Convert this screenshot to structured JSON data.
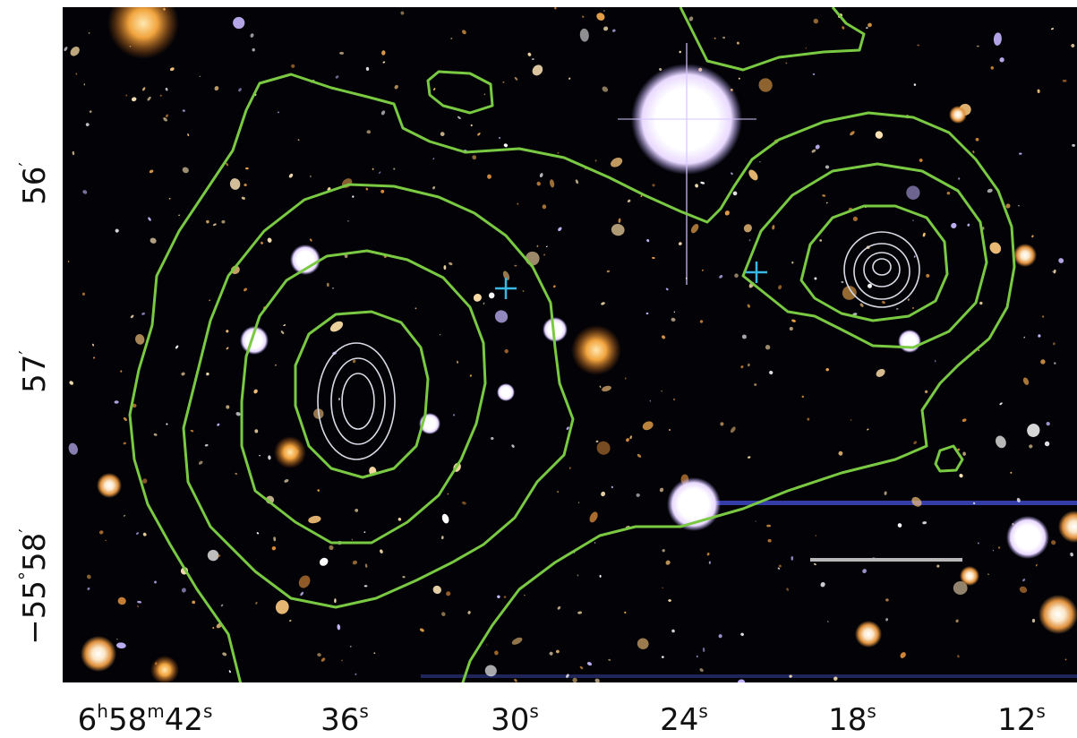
{
  "axes": {
    "x_ticks": [
      {
        "h": "6",
        "m": "58",
        "s": "42"
      },
      {
        "s": "36"
      },
      {
        "s": "30"
      },
      {
        "s": "24"
      },
      {
        "s": "18"
      },
      {
        "s": "12"
      }
    ],
    "y_ticks": [
      {
        "deg": "",
        "min": "56"
      },
      {
        "deg": "",
        "min": "57"
      },
      {
        "deg": "−55",
        "min": "58"
      }
    ],
    "units": {
      "h": "h",
      "m": "m",
      "s": "s",
      "deg": "°",
      "min": "′"
    }
  },
  "colors": {
    "background": "#020207",
    "mass_contour": "#7ac943",
    "xray_contour": "#d9dbe6",
    "marker": "#39b8e6",
    "scale_bar": "#b8b8b8",
    "streak": "#3a43b8"
  }
}
